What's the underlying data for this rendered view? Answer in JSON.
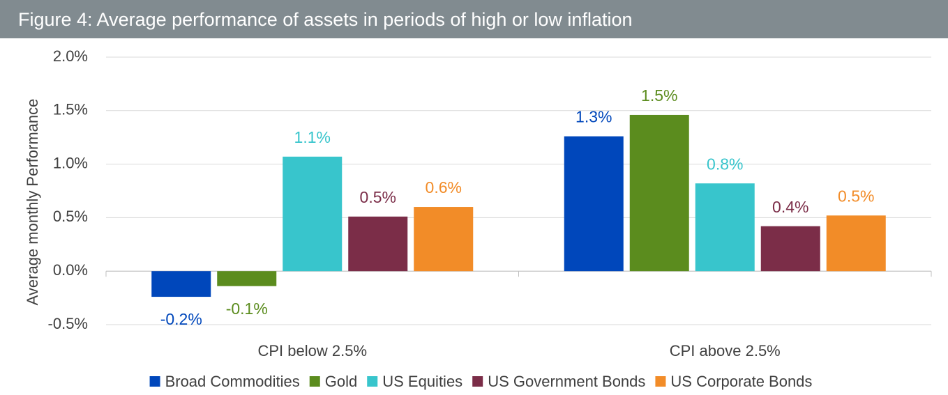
{
  "chart_data": {
    "type": "bar",
    "title": "Figure 4: Average performance of assets in periods of high or low inflation",
    "y_label": "Average monthly Performance",
    "categories": [
      "CPI below 2.5%",
      "CPI above 2.5%"
    ],
    "series": [
      {
        "name": "Broad Commodities",
        "color": "#0047bb",
        "values": [
          -0.24,
          1.26
        ],
        "value_labels": [
          "-0.2%",
          "1.3%"
        ]
      },
      {
        "name": "Gold",
        "color": "#5b8c1e",
        "values": [
          -0.14,
          1.46
        ],
        "value_labels": [
          "-0.1%",
          "1.5%"
        ]
      },
      {
        "name": "US Equities",
        "color": "#38c5cc",
        "values": [
          1.07,
          0.82
        ],
        "value_labels": [
          "1.1%",
          "0.8%"
        ]
      },
      {
        "name": "US Government Bonds",
        "color": "#7b2d48",
        "values": [
          0.51,
          0.42
        ],
        "value_labels": [
          "0.5%",
          "0.4%"
        ]
      },
      {
        "name": "US Corporate Bonds",
        "color": "#f28c28",
        "values": [
          0.6,
          0.52
        ],
        "value_labels": [
          "0.6%",
          "0.5%"
        ]
      }
    ],
    "ylim": [
      -0.5,
      2.0
    ],
    "yticks": [
      {
        "value": -0.5,
        "label": "-0.5%"
      },
      {
        "value": 0,
        "label": "0.0%"
      },
      {
        "value": 0.5,
        "label": "0.5%"
      },
      {
        "value": 1.0,
        "label": "1.0%"
      },
      {
        "value": 1.5,
        "label": "1.5%"
      },
      {
        "value": 2.0,
        "label": "2.0%"
      }
    ],
    "grid": true,
    "legend": "bottom"
  }
}
